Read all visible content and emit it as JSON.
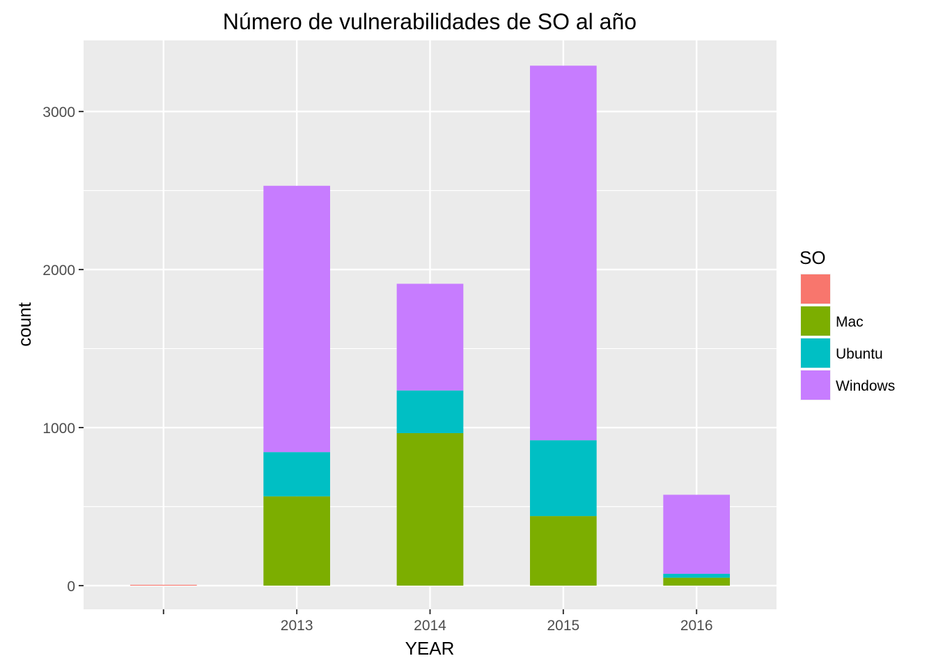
{
  "chart_data": {
    "type": "bar",
    "stacked": true,
    "title": "Número de vulnerabilidades de SO al año",
    "xlabel": "YEAR",
    "ylabel": "count",
    "categories": [
      "",
      "2013",
      "2014",
      "2015",
      "2016"
    ],
    "ylim": [
      -150,
      3450
    ],
    "yticks": [
      0,
      1000,
      2000,
      3000
    ],
    "ytick_labels": [
      "0",
      "1000",
      "2000",
      "3000"
    ],
    "grid": true,
    "legend": {
      "title": "SO",
      "placement": "right"
    },
    "series": [
      {
        "name": "",
        "color": "#F8766D",
        "values": [
          5,
          0,
          0,
          0,
          0
        ]
      },
      {
        "name": "Mac",
        "color": "#7CAE00",
        "values": [
          0,
          565,
          965,
          440,
          50
        ]
      },
      {
        "name": "Ubuntu",
        "color": "#00BFC4",
        "values": [
          0,
          280,
          270,
          480,
          25
        ]
      },
      {
        "name": "Windows",
        "color": "#C77CFF",
        "values": [
          0,
          1685,
          675,
          2370,
          500
        ]
      }
    ]
  }
}
